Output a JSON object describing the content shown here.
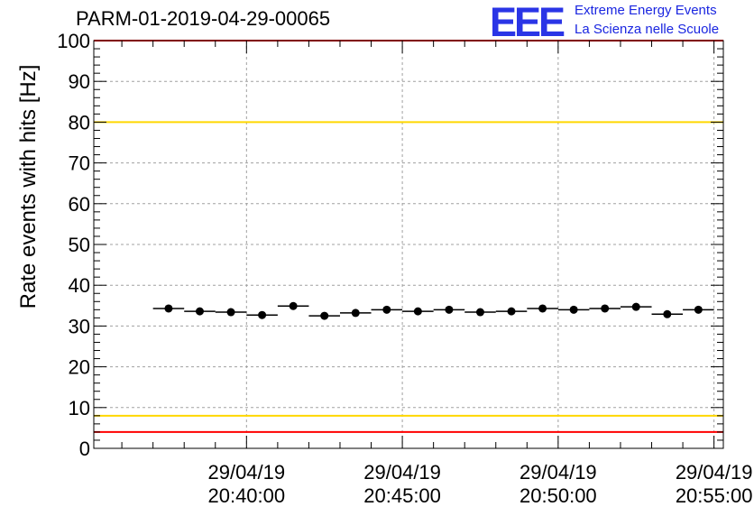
{
  "chart_data": {
    "type": "scatter",
    "title": "PARM-01-2019-04-29-00065",
    "ylabel": "Rate events with hits [Hz]",
    "xlabel": "",
    "ylim": [
      0,
      100
    ],
    "yticks": [
      0,
      10,
      20,
      30,
      40,
      50,
      60,
      70,
      80,
      90,
      100
    ],
    "xlim_minutes": [
      -4.9,
      15.3
    ],
    "xticks": [
      {
        "minute": 0,
        "date": "29/04/19",
        "time": "20:40:00"
      },
      {
        "minute": 5,
        "date": "29/04/19",
        "time": "20:45:00"
      },
      {
        "minute": 10,
        "date": "29/04/19",
        "time": "20:50:00"
      },
      {
        "minute": 15,
        "date": "29/04/19",
        "time": "20:55:00"
      }
    ],
    "bin_width_minutes": 1,
    "x_minutes": [
      -2.5,
      -1.5,
      -0.5,
      0.5,
      1.5,
      2.5,
      3.5,
      4.5,
      5.5,
      6.5,
      7.5,
      8.5,
      9.5,
      10.5,
      11.5,
      12.5,
      13.5,
      14.5
    ],
    "values": [
      34.3,
      33.6,
      33.4,
      32.7,
      34.9,
      32.5,
      33.2,
      34.0,
      33.6,
      34.0,
      33.4,
      33.6,
      34.3,
      34.0,
      34.3,
      34.7,
      32.9,
      34.0
    ],
    "reference_lines": [
      {
        "y": 100,
        "color": "#ff0000"
      },
      {
        "y": 80,
        "color": "#ffd700"
      },
      {
        "y": 8,
        "color": "#ffd700"
      },
      {
        "y": 4,
        "color": "#ff0000"
      }
    ],
    "grid": true
  },
  "logo": {
    "mark": "EEE",
    "line1": "Extreme Energy Events",
    "line2": "La Scienza nelle Scuole"
  }
}
